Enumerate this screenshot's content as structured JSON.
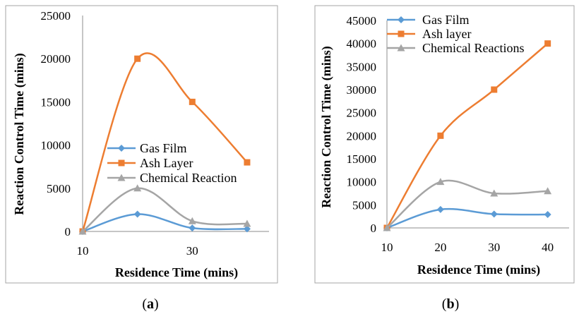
{
  "colors": {
    "gas_film": "#5b9bd5",
    "ash_layer": "#ed7d31",
    "chemical_reaction": "#a5a5a5",
    "frame": "#a6a6a6",
    "axis": "#8c8c8c"
  },
  "chart_data": [
    {
      "type": "line",
      "caption_prefix": "(",
      "caption_letter": "a",
      "caption_suffix": ")",
      "xlabel": "Residence Time (mins)",
      "ylabel": "Reaction Control Time (mins)",
      "x": [
        10,
        20,
        30,
        40
      ],
      "xlim": [
        10,
        44
      ],
      "xticks": [
        10,
        30
      ],
      "ylim": [
        0,
        25000
      ],
      "yticks": [
        0,
        5000,
        10000,
        15000,
        20000,
        25000
      ],
      "grid": false,
      "smooth": true,
      "legend_position": "middle-left",
      "series": [
        {
          "name": "Gas Film",
          "marker": "diamond",
          "color_key": "gas_film",
          "values": [
            0,
            2000,
            400,
            300
          ]
        },
        {
          "name": "Ash Layer",
          "marker": "square",
          "color_key": "ash_layer",
          "values": [
            0,
            20000,
            15000,
            8000
          ]
        },
        {
          "name": "Chemical Reaction",
          "marker": "triangle",
          "color_key": "chemical_reaction",
          "values": [
            0,
            5000,
            1200,
            900
          ]
        }
      ]
    },
    {
      "type": "line",
      "caption_prefix": "(",
      "caption_letter": "b",
      "caption_suffix": ")",
      "xlabel": "Residence Time (mins)",
      "ylabel": "Reaction Control Time (mins)",
      "x": [
        10,
        20,
        30,
        40
      ],
      "xlim": [
        10,
        44
      ],
      "xticks": [
        10,
        20,
        30,
        40
      ],
      "ylim": [
        0,
        45000
      ],
      "yticks": [
        0,
        5000,
        10000,
        15000,
        20000,
        25000,
        30000,
        35000,
        40000,
        45000
      ],
      "grid": false,
      "smooth": true,
      "legend_position": "top-left",
      "series": [
        {
          "name": "Gas Film",
          "marker": "diamond",
          "color_key": "gas_film",
          "values": [
            0,
            4000,
            3000,
            2900
          ]
        },
        {
          "name": "Ash layer",
          "marker": "square",
          "color_key": "ash_layer",
          "values": [
            0,
            20000,
            30000,
            40000
          ]
        },
        {
          "name": "Chemical Reactions",
          "marker": "triangle",
          "color_key": "chemical_reaction",
          "values": [
            0,
            10000,
            7500,
            8000
          ]
        }
      ]
    }
  ]
}
